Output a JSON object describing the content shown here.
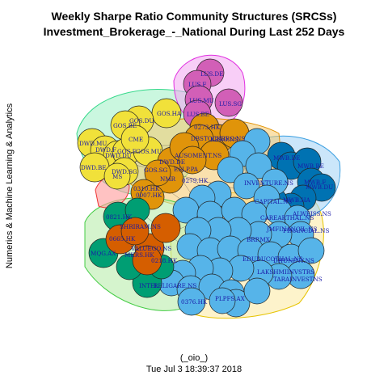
{
  "title_line1": "Weekly Sharpe Ratio Community Structures (SRCSs)",
  "title_line2": "Investment_Brokerage_-_National During Last 252 Days",
  "side_label": "Numerics & Machine Learning & Analytics",
  "footer_line1": "(_oio_)",
  "footer_line2": "Tue Jul  3 18:39:37 2018",
  "colors": {
    "pink": "#d25fb7",
    "yellow": "#f1e13a",
    "orange": "#e0940a",
    "skyblue": "#56b4e9",
    "blue": "#0072b2",
    "green": "#009e73",
    "vermillion": "#d55e00",
    "hull_pink": "#f3a5f0",
    "hull_green": "#9ff0c4",
    "hull_orange": "#f6c86a",
    "hull_blue": "#a9d6f7",
    "hull_yellow": "#fbe9a0",
    "hull_lightgreen": "#b9ecac"
  },
  "nodes": [
    {
      "label": "LUS.DE",
      "color": "pink"
    },
    {
      "label": "LUS.F",
      "color": "pink"
    },
    {
      "label": "LUS.MU",
      "color": "pink"
    },
    {
      "label": "LUS.SG",
      "color": "pink"
    },
    {
      "label": "LUS.BE",
      "color": "pink"
    },
    {
      "label": "GOS.HA",
      "color": "yellow"
    },
    {
      "label": "GOS.DU",
      "color": "yellow"
    },
    {
      "label": "GOS.BE",
      "color": "yellow"
    },
    {
      "label": "DWD.MU",
      "color": "yellow"
    },
    {
      "label": "DWD.F",
      "color": "yellow"
    },
    {
      "label": "DWD.DU",
      "color": "yellow"
    },
    {
      "label": "GOS.F",
      "color": "yellow"
    },
    {
      "label": "GOS.MU",
      "color": "yellow"
    },
    {
      "label": "CME",
      "color": "yellow"
    },
    {
      "label": "DWD.BE",
      "color": "yellow"
    },
    {
      "label": "DWD.SG",
      "color": "yellow"
    },
    {
      "label": "MS",
      "color": "yellow"
    },
    {
      "label": "DWD.DE",
      "color": "orange"
    },
    {
      "label": "0273.HK",
      "color": "orange"
    },
    {
      "label": "KBRO.NS",
      "color": "orange"
    },
    {
      "label": "DBSTOCKBRO.NS",
      "color": "orange"
    },
    {
      "label": "AUSOMENT.NS",
      "color": "orange"
    },
    {
      "label": "NMR",
      "color": "orange"
    },
    {
      "label": "0279.HK",
      "color": "orange"
    },
    {
      "label": "0310.HK",
      "color": "orange"
    },
    {
      "label": "0007.HK",
      "color": "orange"
    },
    {
      "label": "ESLP.PA",
      "color": "orange"
    },
    {
      "label": "GOS.SG",
      "color": "orange"
    },
    {
      "label": "MWB.DE",
      "color": "blue"
    },
    {
      "label": "MWB.BE",
      "color": "blue"
    },
    {
      "label": "MWB.F",
      "color": "blue"
    },
    {
      "label": "MWB.DU",
      "color": "blue"
    },
    {
      "label": "MWB.HA",
      "color": "blue"
    },
    {
      "label": "INVENTURE.NS",
      "color": "skyblue"
    },
    {
      "label": "CAPITAL.NS",
      "color": "skyblue"
    },
    {
      "label": "FINANCIAL.NS",
      "color": "skyblue"
    },
    {
      "label": "CAREARTHAL.NS",
      "color": "skyblue"
    },
    {
      "label": "ALWEISS.NS",
      "color": "skyblue"
    },
    {
      "label": "BRP.MX",
      "color": "skyblue"
    },
    {
      "label": "EDUDUCOTHAL.NS",
      "color": "skyblue"
    },
    {
      "label": "DHUNINY.NS",
      "color": "skyblue"
    },
    {
      "label": "LAKSHMIINVSTRS",
      "color": "skyblue"
    },
    {
      "label": "TARAINVESTNS",
      "color": "skyblue"
    },
    {
      "label": "0376.HK",
      "color": "skyblue"
    },
    {
      "label": "RELIGARE.NS",
      "color": "skyblue"
    },
    {
      "label": "PLPFS.AX",
      "color": "skyblue"
    },
    {
      "label": "JMFINANCIL.NS",
      "color": "skyblue"
    },
    {
      "label": "0821.HK",
      "color": "green"
    },
    {
      "label": "MQG.AX",
      "color": "green"
    },
    {
      "label": "INTEL",
      "color": "green"
    },
    {
      "label": "0665.HK",
      "color": "vermillion"
    },
    {
      "label": "VALUEGO.NS",
      "color": "vermillion"
    },
    {
      "label": "0218.HK",
      "color": "vermillion"
    },
    {
      "label": "SHRIRAM.NS",
      "color": "vermillion"
    },
    {
      "label": "MKRS.HK",
      "color": "vermillion"
    }
  ]
}
